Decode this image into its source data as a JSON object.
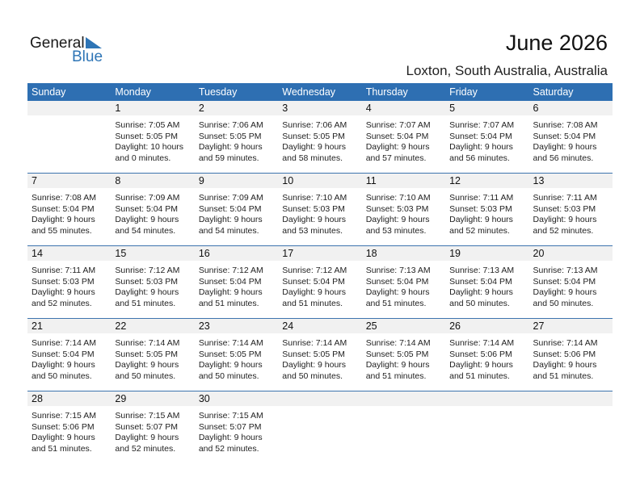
{
  "logo": {
    "word1": "General",
    "word2": "Blue"
  },
  "header": {
    "title": "June 2026",
    "location": "Loxton, South Australia, Australia"
  },
  "weekdays": [
    "Sunday",
    "Monday",
    "Tuesday",
    "Wednesday",
    "Thursday",
    "Friday",
    "Saturday"
  ],
  "colors": {
    "accent": "#2e6fb2",
    "strip": "#f1f1f1"
  },
  "weeks": [
    [
      null,
      {
        "day": "1",
        "sunrise": "Sunrise: 7:05 AM",
        "sunset": "Sunset: 5:05 PM",
        "daylight1": "Daylight: 10 hours",
        "daylight2": "and 0 minutes."
      },
      {
        "day": "2",
        "sunrise": "Sunrise: 7:06 AM",
        "sunset": "Sunset: 5:05 PM",
        "daylight1": "Daylight: 9 hours",
        "daylight2": "and 59 minutes."
      },
      {
        "day": "3",
        "sunrise": "Sunrise: 7:06 AM",
        "sunset": "Sunset: 5:05 PM",
        "daylight1": "Daylight: 9 hours",
        "daylight2": "and 58 minutes."
      },
      {
        "day": "4",
        "sunrise": "Sunrise: 7:07 AM",
        "sunset": "Sunset: 5:04 PM",
        "daylight1": "Daylight: 9 hours",
        "daylight2": "and 57 minutes."
      },
      {
        "day": "5",
        "sunrise": "Sunrise: 7:07 AM",
        "sunset": "Sunset: 5:04 PM",
        "daylight1": "Daylight: 9 hours",
        "daylight2": "and 56 minutes."
      },
      {
        "day": "6",
        "sunrise": "Sunrise: 7:08 AM",
        "sunset": "Sunset: 5:04 PM",
        "daylight1": "Daylight: 9 hours",
        "daylight2": "and 56 minutes."
      }
    ],
    [
      {
        "day": "7",
        "sunrise": "Sunrise: 7:08 AM",
        "sunset": "Sunset: 5:04 PM",
        "daylight1": "Daylight: 9 hours",
        "daylight2": "and 55 minutes."
      },
      {
        "day": "8",
        "sunrise": "Sunrise: 7:09 AM",
        "sunset": "Sunset: 5:04 PM",
        "daylight1": "Daylight: 9 hours",
        "daylight2": "and 54 minutes."
      },
      {
        "day": "9",
        "sunrise": "Sunrise: 7:09 AM",
        "sunset": "Sunset: 5:04 PM",
        "daylight1": "Daylight: 9 hours",
        "daylight2": "and 54 minutes."
      },
      {
        "day": "10",
        "sunrise": "Sunrise: 7:10 AM",
        "sunset": "Sunset: 5:03 PM",
        "daylight1": "Daylight: 9 hours",
        "daylight2": "and 53 minutes."
      },
      {
        "day": "11",
        "sunrise": "Sunrise: 7:10 AM",
        "sunset": "Sunset: 5:03 PM",
        "daylight1": "Daylight: 9 hours",
        "daylight2": "and 53 minutes."
      },
      {
        "day": "12",
        "sunrise": "Sunrise: 7:11 AM",
        "sunset": "Sunset: 5:03 PM",
        "daylight1": "Daylight: 9 hours",
        "daylight2": "and 52 minutes."
      },
      {
        "day": "13",
        "sunrise": "Sunrise: 7:11 AM",
        "sunset": "Sunset: 5:03 PM",
        "daylight1": "Daylight: 9 hours",
        "daylight2": "and 52 minutes."
      }
    ],
    [
      {
        "day": "14",
        "sunrise": "Sunrise: 7:11 AM",
        "sunset": "Sunset: 5:03 PM",
        "daylight1": "Daylight: 9 hours",
        "daylight2": "and 52 minutes."
      },
      {
        "day": "15",
        "sunrise": "Sunrise: 7:12 AM",
        "sunset": "Sunset: 5:03 PM",
        "daylight1": "Daylight: 9 hours",
        "daylight2": "and 51 minutes."
      },
      {
        "day": "16",
        "sunrise": "Sunrise: 7:12 AM",
        "sunset": "Sunset: 5:04 PM",
        "daylight1": "Daylight: 9 hours",
        "daylight2": "and 51 minutes."
      },
      {
        "day": "17",
        "sunrise": "Sunrise: 7:12 AM",
        "sunset": "Sunset: 5:04 PM",
        "daylight1": "Daylight: 9 hours",
        "daylight2": "and 51 minutes."
      },
      {
        "day": "18",
        "sunrise": "Sunrise: 7:13 AM",
        "sunset": "Sunset: 5:04 PM",
        "daylight1": "Daylight: 9 hours",
        "daylight2": "and 51 minutes."
      },
      {
        "day": "19",
        "sunrise": "Sunrise: 7:13 AM",
        "sunset": "Sunset: 5:04 PM",
        "daylight1": "Daylight: 9 hours",
        "daylight2": "and 50 minutes."
      },
      {
        "day": "20",
        "sunrise": "Sunrise: 7:13 AM",
        "sunset": "Sunset: 5:04 PM",
        "daylight1": "Daylight: 9 hours",
        "daylight2": "and 50 minutes."
      }
    ],
    [
      {
        "day": "21",
        "sunrise": "Sunrise: 7:14 AM",
        "sunset": "Sunset: 5:04 PM",
        "daylight1": "Daylight: 9 hours",
        "daylight2": "and 50 minutes."
      },
      {
        "day": "22",
        "sunrise": "Sunrise: 7:14 AM",
        "sunset": "Sunset: 5:05 PM",
        "daylight1": "Daylight: 9 hours",
        "daylight2": "and 50 minutes."
      },
      {
        "day": "23",
        "sunrise": "Sunrise: 7:14 AM",
        "sunset": "Sunset: 5:05 PM",
        "daylight1": "Daylight: 9 hours",
        "daylight2": "and 50 minutes."
      },
      {
        "day": "24",
        "sunrise": "Sunrise: 7:14 AM",
        "sunset": "Sunset: 5:05 PM",
        "daylight1": "Daylight: 9 hours",
        "daylight2": "and 50 minutes."
      },
      {
        "day": "25",
        "sunrise": "Sunrise: 7:14 AM",
        "sunset": "Sunset: 5:05 PM",
        "daylight1": "Daylight: 9 hours",
        "daylight2": "and 51 minutes."
      },
      {
        "day": "26",
        "sunrise": "Sunrise: 7:14 AM",
        "sunset": "Sunset: 5:06 PM",
        "daylight1": "Daylight: 9 hours",
        "daylight2": "and 51 minutes."
      },
      {
        "day": "27",
        "sunrise": "Sunrise: 7:14 AM",
        "sunset": "Sunset: 5:06 PM",
        "daylight1": "Daylight: 9 hours",
        "daylight2": "and 51 minutes."
      }
    ],
    [
      {
        "day": "28",
        "sunrise": "Sunrise: 7:15 AM",
        "sunset": "Sunset: 5:06 PM",
        "daylight1": "Daylight: 9 hours",
        "daylight2": "and 51 minutes."
      },
      {
        "day": "29",
        "sunrise": "Sunrise: 7:15 AM",
        "sunset": "Sunset: 5:07 PM",
        "daylight1": "Daylight: 9 hours",
        "daylight2": "and 52 minutes."
      },
      {
        "day": "30",
        "sunrise": "Sunrise: 7:15 AM",
        "sunset": "Sunset: 5:07 PM",
        "daylight1": "Daylight: 9 hours",
        "daylight2": "and 52 minutes."
      },
      null,
      null,
      null,
      null
    ]
  ]
}
